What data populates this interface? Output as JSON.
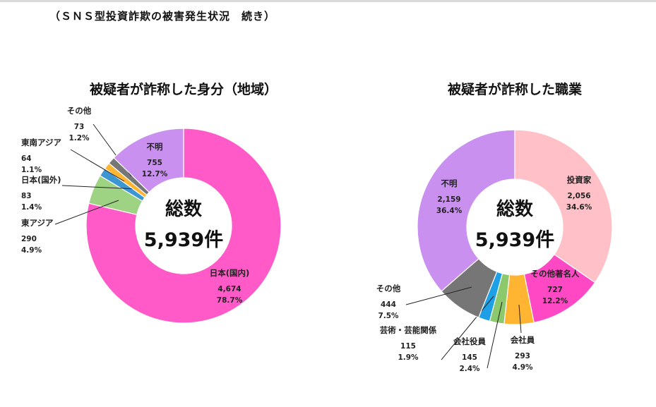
{
  "page": {
    "title": "（ＳＮＳ型投資詐欺の被害発生状況　続き）"
  },
  "chart_data": [
    {
      "type": "donut",
      "title": "被疑者が詐称した身分（地域）",
      "center": {
        "label": "総数",
        "value": "5,939件"
      },
      "slices": [
        {
          "name": "日本(国内)",
          "count": "4,674",
          "percent": "78.7%",
          "value": 78.7,
          "color": "#ff5ac8"
        },
        {
          "name": "東アジア",
          "count": "290",
          "percent": "4.9%",
          "value": 4.9,
          "color": "#9fd384"
        },
        {
          "name": "日本(国外)",
          "count": "83",
          "percent": "1.4%",
          "value": 1.4,
          "color": "#3c96d2"
        },
        {
          "name": "東南アジア",
          "count": "64",
          "percent": "1.1%",
          "value": 1.1,
          "color": "#ffb432"
        },
        {
          "name": "その他",
          "count": "73",
          "percent": "1.2%",
          "value": 1.2,
          "color": "#767676"
        },
        {
          "name": "不明",
          "count": "755",
          "percent": "12.7%",
          "value": 12.7,
          "color": "#c990f0"
        }
      ]
    },
    {
      "type": "donut",
      "title": "被疑者が詐称した職業",
      "center": {
        "label": "総数",
        "value": "5,939件"
      },
      "slices": [
        {
          "name": "投資家",
          "count": "2,056",
          "percent": "34.6%",
          "value": 34.6,
          "color": "#ffc0c8"
        },
        {
          "name": "その他著名人",
          "count": "727",
          "percent": "12.2%",
          "value": 12.2,
          "color": "#ff48c4"
        },
        {
          "name": "会社員",
          "count": "293",
          "percent": "4.9%",
          "value": 4.9,
          "color": "#ffb432"
        },
        {
          "name": "会社役員",
          "count": "145",
          "percent": "2.4%",
          "value": 2.4,
          "color": "#8cc86c"
        },
        {
          "name": "芸術・芸能関係",
          "count": "115",
          "percent": "1.9%",
          "value": 1.9,
          "color": "#1ea0e6"
        },
        {
          "name": "その他",
          "count": "444",
          "percent": "7.5%",
          "value": 7.5,
          "color": "#767676"
        },
        {
          "name": "不明",
          "count": "2,159",
          "percent": "36.4%",
          "value": 36.4,
          "color": "#c990f0"
        }
      ]
    }
  ]
}
